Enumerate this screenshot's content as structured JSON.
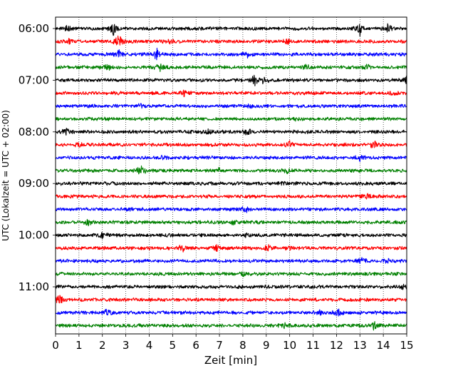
{
  "chart_data": {
    "type": "line",
    "title": "",
    "xlabel": "Zeit  [min]",
    "ylabel": "UTC (Lokalzeit = UTC + 02:00)",
    "xlim": [
      0,
      15
    ],
    "x_ticks": [
      0,
      1,
      2,
      3,
      4,
      5,
      6,
      7,
      8,
      9,
      10,
      11,
      12,
      13,
      14,
      15
    ],
    "y_tick_labels": [
      "06:00",
      "07:00",
      "08:00",
      "09:00",
      "10:00",
      "11:00"
    ],
    "grid": "vertical dotted lines at each minute",
    "trace_minutes": 15,
    "trace_colors": [
      "#000000",
      "#ff0000",
      "#0000ff",
      "#008000"
    ],
    "series": [
      {
        "start": "06:00",
        "color": "#000000",
        "events": [
          [
            2.45,
            1.0
          ],
          [
            13.0,
            1.0
          ],
          [
            14.2,
            0.6
          ],
          [
            0.5,
            0.35
          ]
        ]
      },
      {
        "start": "06:15",
        "color": "#ff0000",
        "events": [
          [
            2.7,
            1.0
          ],
          [
            0.6,
            0.3
          ],
          [
            4.9,
            0.3
          ],
          [
            9.9,
            0.35
          ]
        ]
      },
      {
        "start": "06:30",
        "color": "#0000ff",
        "events": [
          [
            2.7,
            0.55
          ],
          [
            4.35,
            1.0
          ],
          [
            8.2,
            0.45
          ]
        ]
      },
      {
        "start": "06:45",
        "color": "#008000",
        "events": [
          [
            2.2,
            0.45
          ],
          [
            4.45,
            0.6
          ],
          [
            10.7,
            0.35
          ],
          [
            13.3,
            0.35
          ]
        ]
      },
      {
        "start": "07:00",
        "color": "#000000",
        "events": [
          [
            8.5,
            1.0
          ],
          [
            8.9,
            0.5
          ],
          [
            15.0,
            0.6
          ]
        ]
      },
      {
        "start": "07:15",
        "color": "#ff0000",
        "events": [
          [
            5.5,
            0.35
          ],
          [
            14.5,
            0.25
          ]
        ]
      },
      {
        "start": "07:30",
        "color": "#0000ff",
        "events": [
          [
            3.6,
            0.2
          ],
          [
            8.3,
            0.2
          ]
        ]
      },
      {
        "start": "07:45",
        "color": "#008000",
        "events": [
          [
            10.3,
            0.2
          ]
        ]
      },
      {
        "start": "08:00",
        "color": "#000000",
        "events": [
          [
            0.45,
            0.55
          ],
          [
            8.2,
            0.45
          ],
          [
            6.5,
            0.3
          ]
        ]
      },
      {
        "start": "08:15",
        "color": "#ff0000",
        "events": [
          [
            10.0,
            0.45
          ],
          [
            13.6,
            0.55
          ],
          [
            1.0,
            0.3
          ]
        ]
      },
      {
        "start": "08:30",
        "color": "#0000ff",
        "events": [
          [
            4.6,
            0.25
          ],
          [
            13.0,
            0.35
          ]
        ]
      },
      {
        "start": "08:45",
        "color": "#008000",
        "events": [
          [
            3.65,
            1.0
          ],
          [
            7.0,
            0.35
          ],
          [
            9.9,
            0.35
          ]
        ]
      },
      {
        "start": "09:00",
        "color": "#000000",
        "events": [
          [
            9.7,
            0.2
          ]
        ]
      },
      {
        "start": "09:15",
        "color": "#ff0000",
        "events": [
          [
            13.3,
            0.35
          ]
        ]
      },
      {
        "start": "09:30",
        "color": "#0000ff",
        "events": [
          [
            8.1,
            0.45
          ],
          [
            3.1,
            0.25
          ]
        ]
      },
      {
        "start": "09:45",
        "color": "#008000",
        "events": [
          [
            1.4,
            0.45
          ],
          [
            7.6,
            0.25
          ]
        ]
      },
      {
        "start": "10:00",
        "color": "#000000",
        "events": [
          [
            2.0,
            0.35
          ],
          [
            8.1,
            0.2
          ]
        ]
      },
      {
        "start": "10:15",
        "color": "#ff0000",
        "events": [
          [
            5.4,
            0.6
          ],
          [
            6.9,
            0.45
          ],
          [
            9.1,
            0.45
          ],
          [
            10.0,
            0.2
          ]
        ]
      },
      {
        "start": "10:30",
        "color": "#0000ff",
        "events": [
          [
            13.1,
            0.45
          ],
          [
            14.2,
            0.35
          ]
        ]
      },
      {
        "start": "10:45",
        "color": "#008000",
        "events": [
          [
            8.0,
            0.2
          ]
        ]
      },
      {
        "start": "11:00",
        "color": "#000000",
        "events": [
          [
            14.85,
            0.35
          ]
        ]
      },
      {
        "start": "11:15",
        "color": "#ff0000",
        "events": [
          [
            0.15,
            0.6
          ]
        ]
      },
      {
        "start": "11:30",
        "color": "#0000ff",
        "events": [
          [
            2.2,
            0.45
          ],
          [
            12.05,
            0.6
          ],
          [
            11.3,
            0.3
          ]
        ]
      },
      {
        "start": "11:45",
        "color": "#008000",
        "events": [
          [
            13.6,
            0.6
          ],
          [
            9.8,
            0.35
          ]
        ]
      }
    ]
  }
}
